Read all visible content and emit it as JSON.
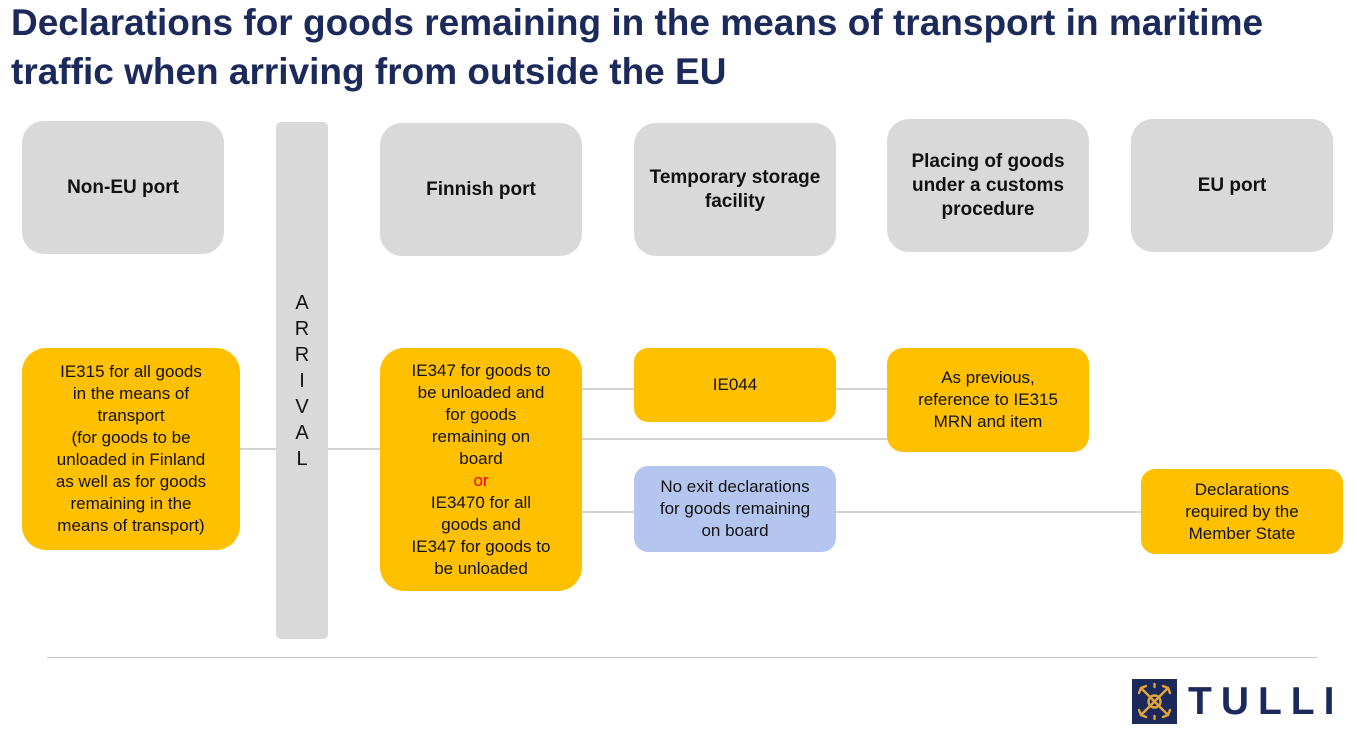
{
  "title": "Declarations for goods remaining in the means of transport in maritime traffic when arriving from outside the EU",
  "columns": {
    "non_eu_port": "Non-EU port",
    "finnish_port": "Finnish port",
    "temporary_storage": "Temporary storage facility",
    "customs_procedure": "Placing of goods under a customs procedure",
    "eu_port": "EU port"
  },
  "arrival": {
    "letters": [
      "A",
      "R",
      "R",
      "I",
      "V",
      "A",
      "L"
    ]
  },
  "nodes": {
    "ie315_box": {
      "lines": [
        "IE315 for all goods",
        "in the means of",
        "transport",
        "(for goods to be",
        "unloaded in Finland",
        "as well as for goods",
        "remaining in the",
        "means of transport)"
      ]
    },
    "ie347_box": {
      "lines_before": [
        "IE347 for goods to",
        "be unloaded and",
        "for goods",
        "remaining on",
        "board"
      ],
      "or_text": "or",
      "lines_after": [
        "IE3470 for all",
        "goods and",
        "IE347 for goods to",
        "be unloaded"
      ]
    },
    "ie044_box": {
      "text": "IE044"
    },
    "as_previous_box": {
      "lines": [
        "As previous,",
        "reference to IE315",
        "MRN and item"
      ]
    },
    "no_exit_box": {
      "lines": [
        "No exit declarations",
        "for goods remaining",
        "on board"
      ]
    },
    "member_state_box": {
      "lines": [
        "Declarations",
        "required by the",
        "Member State"
      ]
    }
  },
  "logo": {
    "text": "TULLI"
  },
  "colors": {
    "title": "#1b2a5b",
    "header_box": "#d9d9d9",
    "yellow_box": "#ffc000",
    "blue_box": "#b4c6ef",
    "or_text": "#ff0000",
    "connector": "#d3d3d3"
  }
}
